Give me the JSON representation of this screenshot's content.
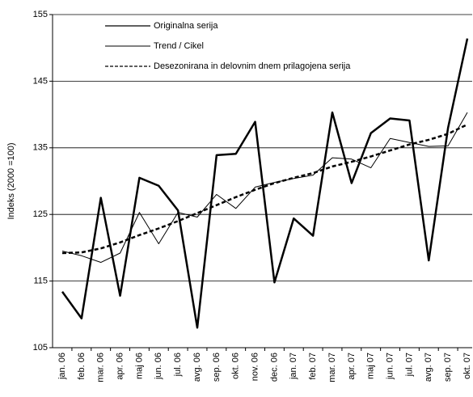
{
  "chart_data": {
    "type": "line",
    "y_label": "Indeks (2000 =100)",
    "categories": [
      "jan. 06",
      "feb. 06",
      "mar. 06",
      "apr. 06",
      "maj 06",
      "jun. 06",
      "jul. 06",
      "avg. 06",
      "sep. 06",
      "okt. 06",
      "nov. 06",
      "dec. 06",
      "jan. 07",
      "feb. 07",
      "mar. 07",
      "apr. 07",
      "maj 07",
      "jun. 07",
      "jul. 07",
      "avg. 07",
      "sep. 07",
      "okt. 07"
    ],
    "series": [
      {
        "name": "Originalna serija",
        "color": "#000000",
        "line_width": 2.5,
        "dashed": false,
        "values": [
          113.4,
          109.4,
          127.5,
          112.8,
          130.5,
          129.3,
          125.6,
          108,
          133.9,
          134.1,
          138.9,
          114.8,
          124.4,
          121.8,
          140.3,
          129.7,
          137.2,
          139.4,
          139.1,
          118.1,
          138,
          151.4
        ]
      },
      {
        "name": "Trend / Cikel",
        "color": "#000000",
        "line_width": 1,
        "dashed": false,
        "values": [
          119.5,
          118.8,
          117.8,
          119.2,
          125.3,
          120.6,
          125.3,
          124.6,
          128,
          125.9,
          129.1,
          129.8,
          130.4,
          130.9,
          133.5,
          133.3,
          132,
          136.4,
          135.8,
          135.2,
          135.3,
          140.3
        ]
      },
      {
        "name": "Desezonirana in delovnim dnem prilagojena serija",
        "color": "#000000",
        "line_width": 2.5,
        "dashed": true,
        "values": [
          119.2,
          119.3,
          119.9,
          120.8,
          121.9,
          122.9,
          124,
          125.2,
          126.4,
          127.6,
          128.7,
          129.7,
          130.5,
          131.2,
          132.2,
          132.9,
          133.7,
          134.6,
          135.5,
          136.2,
          137.1,
          138.5
        ]
      }
    ],
    "ylim": [
      105,
      155
    ],
    "yticks": [
      105,
      115,
      125,
      135,
      145,
      155
    ],
    "grid": true,
    "legend": "upper left"
  }
}
